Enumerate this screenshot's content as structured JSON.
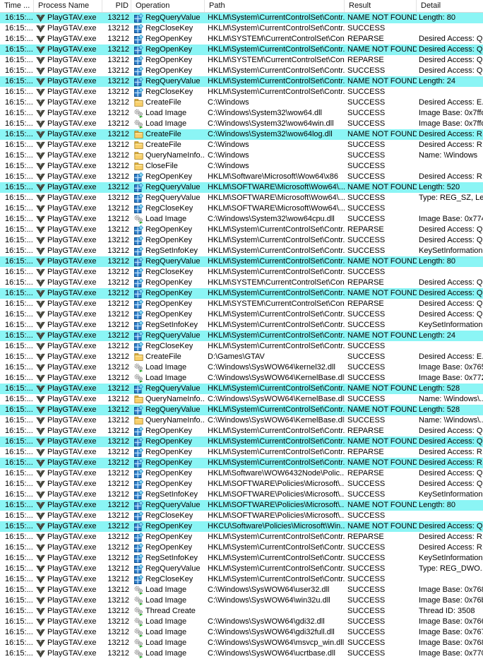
{
  "columns": [
    {
      "key": "time",
      "label": "Time ..."
    },
    {
      "key": "process",
      "label": "Process Name"
    },
    {
      "key": "pid",
      "label": "PID"
    },
    {
      "key": "operation",
      "label": "Operation"
    },
    {
      "key": "path",
      "label": "Path"
    },
    {
      "key": "result",
      "label": "Result"
    },
    {
      "key": "detail",
      "label": "Detail"
    }
  ],
  "colors": {
    "highlight": "#8bf5f5"
  },
  "defaults": {
    "time": "16:15:...",
    "process": "PlayGTAV.exe",
    "pid": "13212"
  },
  "rows": [
    {
      "op": "RegQueryValue",
      "icon": "registry",
      "path": "HKLM\\System\\CurrentControlSet\\Contr...",
      "result": "NAME NOT FOUND",
      "detail": "Length: 80",
      "hl": true
    },
    {
      "op": "RegCloseKey",
      "icon": "registry",
      "path": "HKLM\\System\\CurrentControlSet\\Contr...",
      "result": "SUCCESS",
      "detail": "",
      "hl": false
    },
    {
      "op": "RegOpenKey",
      "icon": "registry",
      "path": "HKLM\\SYSTEM\\CurrentControlSet\\Con...",
      "result": "REPARSE",
      "detail": "Desired Access: Q...",
      "hl": false
    },
    {
      "op": "RegOpenKey",
      "icon": "registry",
      "path": "HKLM\\System\\CurrentControlSet\\Contr...",
      "result": "NAME NOT FOUND",
      "detail": "Desired Access: Q...",
      "hl": true
    },
    {
      "op": "RegOpenKey",
      "icon": "registry",
      "path": "HKLM\\SYSTEM\\CurrentControlSet\\Con...",
      "result": "REPARSE",
      "detail": "Desired Access: Q...",
      "hl": false
    },
    {
      "op": "RegOpenKey",
      "icon": "registry",
      "path": "HKLM\\System\\CurrentControlSet\\Contr...",
      "result": "SUCCESS",
      "detail": "Desired Access: Q...",
      "hl": false
    },
    {
      "op": "RegQueryValue",
      "icon": "registry",
      "path": "HKLM\\System\\CurrentControlSet\\Contr...",
      "result": "NAME NOT FOUND",
      "detail": "Length: 24",
      "hl": true
    },
    {
      "op": "RegCloseKey",
      "icon": "registry",
      "path": "HKLM\\System\\CurrentControlSet\\Contr...",
      "result": "SUCCESS",
      "detail": "",
      "hl": false
    },
    {
      "op": "CreateFile",
      "icon": "folder",
      "path": "C:\\Windows",
      "result": "SUCCESS",
      "detail": "Desired Access: E...",
      "hl": false
    },
    {
      "op": "Load Image",
      "icon": "gears",
      "path": "C:\\Windows\\System32\\wow64.dll",
      "result": "SUCCESS",
      "detail": "Image Base: 0x7ffd...",
      "hl": false
    },
    {
      "op": "Load Image",
      "icon": "gears",
      "path": "C:\\Windows\\System32\\wow64win.dll",
      "result": "SUCCESS",
      "detail": "Image Base: 0x7ffd...",
      "hl": false
    },
    {
      "op": "CreateFile",
      "icon": "folder",
      "path": "C:\\Windows\\System32\\wow64log.dll",
      "result": "NAME NOT FOUND",
      "detail": "Desired Access: R...",
      "hl": true
    },
    {
      "op": "CreateFile",
      "icon": "folder",
      "path": "C:\\Windows",
      "result": "SUCCESS",
      "detail": "Desired Access: R...",
      "hl": false
    },
    {
      "op": "QueryNameInfo...",
      "icon": "folder",
      "path": "C:\\Windows",
      "result": "SUCCESS",
      "detail": "Name: \\Windows",
      "hl": false
    },
    {
      "op": "CloseFile",
      "icon": "folder",
      "path": "C:\\Windows",
      "result": "SUCCESS",
      "detail": "",
      "hl": false
    },
    {
      "op": "RegOpenKey",
      "icon": "registry",
      "path": "HKLM\\Software\\Microsoft\\Wow64\\x86",
      "result": "SUCCESS",
      "detail": "Desired Access: R...",
      "hl": false
    },
    {
      "op": "RegQueryValue",
      "icon": "registry",
      "path": "HKLM\\SOFTWARE\\Microsoft\\Wow64\\...",
      "result": "NAME NOT FOUND",
      "detail": "Length: 520",
      "hl": true
    },
    {
      "op": "RegQueryValue",
      "icon": "registry",
      "path": "HKLM\\SOFTWARE\\Microsoft\\Wow64\\...",
      "result": "SUCCESS",
      "detail": "Type: REG_SZ, Le...",
      "hl": false
    },
    {
      "op": "RegCloseKey",
      "icon": "registry",
      "path": "HKLM\\SOFTWARE\\Microsoft\\Wow64\\...",
      "result": "SUCCESS",
      "detail": "",
      "hl": false
    },
    {
      "op": "Load Image",
      "icon": "gears",
      "path": "C:\\Windows\\System32\\wow64cpu.dll",
      "result": "SUCCESS",
      "detail": "Image Base: 0x774...",
      "hl": false
    },
    {
      "op": "RegOpenKey",
      "icon": "registry",
      "path": "HKLM\\System\\CurrentControlSet\\Contr...",
      "result": "REPARSE",
      "detail": "Desired Access: Q...",
      "hl": false
    },
    {
      "op": "RegOpenKey",
      "icon": "registry",
      "path": "HKLM\\System\\CurrentControlSet\\Contr...",
      "result": "SUCCESS",
      "detail": "Desired Access: Q...",
      "hl": false
    },
    {
      "op": "RegSetInfoKey",
      "icon": "registry",
      "path": "HKLM\\System\\CurrentControlSet\\Contr...",
      "result": "SUCCESS",
      "detail": "KeySetInformation...",
      "hl": false
    },
    {
      "op": "RegQueryValue",
      "icon": "registry",
      "path": "HKLM\\System\\CurrentControlSet\\Contr...",
      "result": "NAME NOT FOUND",
      "detail": "Length: 80",
      "hl": true
    },
    {
      "op": "RegCloseKey",
      "icon": "registry",
      "path": "HKLM\\System\\CurrentControlSet\\Contr...",
      "result": "SUCCESS",
      "detail": "",
      "hl": false
    },
    {
      "op": "RegOpenKey",
      "icon": "registry",
      "path": "HKLM\\SYSTEM\\CurrentControlSet\\Con...",
      "result": "REPARSE",
      "detail": "Desired Access: Q...",
      "hl": false
    },
    {
      "op": "RegOpenKey",
      "icon": "registry",
      "path": "HKLM\\System\\CurrentControlSet\\Contr...",
      "result": "NAME NOT FOUND",
      "detail": "Desired Access: Q...",
      "hl": true
    },
    {
      "op": "RegOpenKey",
      "icon": "registry",
      "path": "HKLM\\SYSTEM\\CurrentControlSet\\Con...",
      "result": "REPARSE",
      "detail": "Desired Access: Q...",
      "hl": false
    },
    {
      "op": "RegOpenKey",
      "icon": "registry",
      "path": "HKLM\\System\\CurrentControlSet\\Contr...",
      "result": "SUCCESS",
      "detail": "Desired Access: Q...",
      "hl": false
    },
    {
      "op": "RegSetInfoKey",
      "icon": "registry",
      "path": "HKLM\\System\\CurrentControlSet\\Contr...",
      "result": "SUCCESS",
      "detail": "KeySetInformation...",
      "hl": false
    },
    {
      "op": "RegQueryValue",
      "icon": "registry",
      "path": "HKLM\\System\\CurrentControlSet\\Contr...",
      "result": "NAME NOT FOUND",
      "detail": "Length: 24",
      "hl": true
    },
    {
      "op": "RegCloseKey",
      "icon": "registry",
      "path": "HKLM\\System\\CurrentControlSet\\Contr...",
      "result": "SUCCESS",
      "detail": "",
      "hl": false
    },
    {
      "op": "CreateFile",
      "icon": "folder",
      "path": "D:\\Games\\GTAV",
      "result": "SUCCESS",
      "detail": "Desired Access: E...",
      "hl": false
    },
    {
      "op": "Load Image",
      "icon": "gears",
      "path": "C:\\Windows\\SysWOW64\\kernel32.dll",
      "result": "SUCCESS",
      "detail": "Image Base: 0x765...",
      "hl": false
    },
    {
      "op": "Load Image",
      "icon": "gears",
      "path": "C:\\Windows\\SysWOW64\\KernelBase.dll",
      "result": "SUCCESS",
      "detail": "Image Base: 0x772...",
      "hl": false
    },
    {
      "op": "RegQueryValue",
      "icon": "registry",
      "path": "HKLM\\System\\CurrentControlSet\\Contr...",
      "result": "NAME NOT FOUND",
      "detail": "Length: 528",
      "hl": true
    },
    {
      "op": "QueryNameInfo...",
      "icon": "folder",
      "path": "C:\\Windows\\SysWOW64\\KernelBase.dll",
      "result": "SUCCESS",
      "detail": "Name: \\Windows\\...",
      "hl": false
    },
    {
      "op": "RegQueryValue",
      "icon": "registry",
      "path": "HKLM\\System\\CurrentControlSet\\Contr...",
      "result": "NAME NOT FOUND",
      "detail": "Length: 528",
      "hl": true
    },
    {
      "op": "QueryNameInfo...",
      "icon": "folder",
      "path": "C:\\Windows\\SysWOW64\\KernelBase.dll",
      "result": "SUCCESS",
      "detail": "Name: \\Windows\\...",
      "hl": false
    },
    {
      "op": "RegOpenKey",
      "icon": "registry",
      "path": "HKLM\\System\\CurrentControlSet\\Contr...",
      "result": "REPARSE",
      "detail": "Desired Access: Q...",
      "hl": false
    },
    {
      "op": "RegOpenKey",
      "icon": "registry",
      "path": "HKLM\\System\\CurrentControlSet\\Contr...",
      "result": "NAME NOT FOUND",
      "detail": "Desired Access: Q...",
      "hl": true
    },
    {
      "op": "RegOpenKey",
      "icon": "registry",
      "path": "HKLM\\System\\CurrentControlSet\\Contr...",
      "result": "REPARSE",
      "detail": "Desired Access: R...",
      "hl": false
    },
    {
      "op": "RegOpenKey",
      "icon": "registry",
      "path": "HKLM\\System\\CurrentControlSet\\Contr...",
      "result": "NAME NOT FOUND",
      "detail": "Desired Access: R...",
      "hl": true
    },
    {
      "op": "RegOpenKey",
      "icon": "registry",
      "path": "HKLM\\Software\\WOW6432Node\\Polic...",
      "result": "REPARSE",
      "detail": "Desired Access: Q...",
      "hl": false
    },
    {
      "op": "RegOpenKey",
      "icon": "registry",
      "path": "HKLM\\SOFTWARE\\Policies\\Microsoft\\...",
      "result": "SUCCESS",
      "detail": "Desired Access: Q...",
      "hl": false
    },
    {
      "op": "RegSetInfoKey",
      "icon": "registry",
      "path": "HKLM\\SOFTWARE\\Policies\\Microsoft\\...",
      "result": "SUCCESS",
      "detail": "KeySetInformation...",
      "hl": false
    },
    {
      "op": "RegQueryValue",
      "icon": "registry",
      "path": "HKLM\\SOFTWARE\\Policies\\Microsoft\\...",
      "result": "NAME NOT FOUND",
      "detail": "Length: 80",
      "hl": true
    },
    {
      "op": "RegCloseKey",
      "icon": "registry",
      "path": "HKLM\\SOFTWARE\\Policies\\Microsoft\\...",
      "result": "SUCCESS",
      "detail": "",
      "hl": false
    },
    {
      "op": "RegOpenKey",
      "icon": "registry",
      "path": "HKCU\\Software\\Policies\\Microsoft\\Win...",
      "result": "NAME NOT FOUND",
      "detail": "Desired Access: Q...",
      "hl": true
    },
    {
      "op": "RegOpenKey",
      "icon": "registry",
      "path": "HKLM\\System\\CurrentControlSet\\Contr...",
      "result": "REPARSE",
      "detail": "Desired Access: R...",
      "hl": false
    },
    {
      "op": "RegOpenKey",
      "icon": "registry",
      "path": "HKLM\\System\\CurrentControlSet\\Contr...",
      "result": "SUCCESS",
      "detail": "Desired Access: R...",
      "hl": false
    },
    {
      "op": "RegSetInfoKey",
      "icon": "registry",
      "path": "HKLM\\System\\CurrentControlSet\\Contr...",
      "result": "SUCCESS",
      "detail": "KeySetInformation...",
      "hl": false
    },
    {
      "op": "RegQueryValue",
      "icon": "registry",
      "path": "HKLM\\System\\CurrentControlSet\\Contr...",
      "result": "SUCCESS",
      "detail": "Type: REG_DWO...",
      "hl": false
    },
    {
      "op": "RegCloseKey",
      "icon": "registry",
      "path": "HKLM\\System\\CurrentControlSet\\Contr...",
      "result": "SUCCESS",
      "detail": "",
      "hl": false
    },
    {
      "op": "Load Image",
      "icon": "gears",
      "path": "C:\\Windows\\SysWOW64\\user32.dll",
      "result": "SUCCESS",
      "detail": "Image Base: 0x768...",
      "hl": false
    },
    {
      "op": "Load Image",
      "icon": "gears",
      "path": "C:\\Windows\\SysWOW64\\win32u.dll",
      "result": "SUCCESS",
      "detail": "Image Base: 0x76b...",
      "hl": false
    },
    {
      "op": "Thread Create",
      "icon": "gears",
      "path": "",
      "result": "SUCCESS",
      "detail": "Thread ID: 3508",
      "hl": false
    },
    {
      "op": "Load Image",
      "icon": "gears",
      "path": "C:\\Windows\\SysWOW64\\gdi32.dll",
      "result": "SUCCESS",
      "detail": "Image Base: 0x766...",
      "hl": false
    },
    {
      "op": "Load Image",
      "icon": "gears",
      "path": "C:\\Windows\\SysWOW64\\gdi32full.dll",
      "result": "SUCCESS",
      "detail": "Image Base: 0x767...",
      "hl": false
    },
    {
      "op": "Load Image",
      "icon": "gears",
      "path": "C:\\Windows\\SysWOW64\\msvcp_win.dll",
      "result": "SUCCESS",
      "detail": "Image Base: 0x768...",
      "hl": false
    },
    {
      "op": "Load Image",
      "icon": "gears",
      "path": "C:\\Windows\\SysWOW64\\ucrtbase.dll",
      "result": "SUCCESS",
      "detail": "Image Base: 0x770...",
      "hl": false
    }
  ]
}
